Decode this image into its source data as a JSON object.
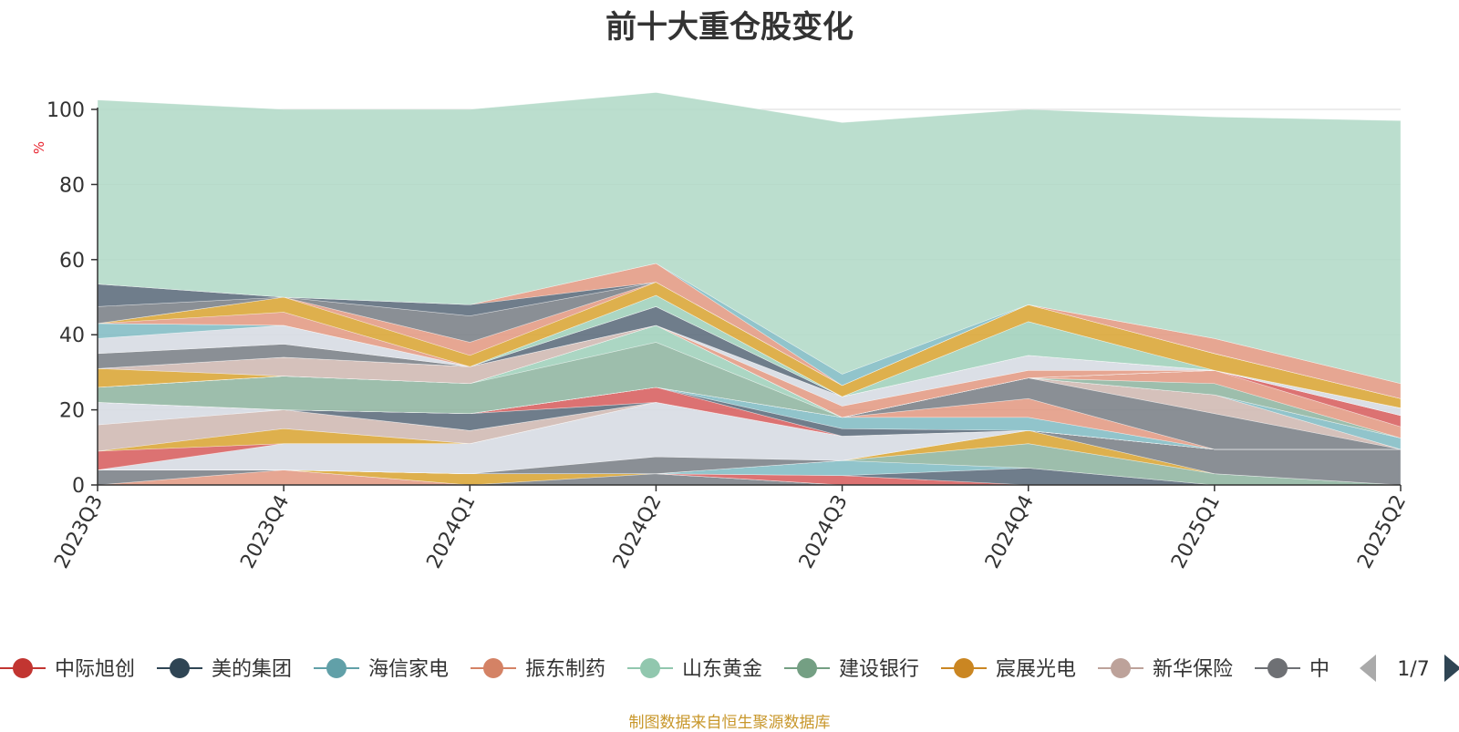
{
  "chart_data": {
    "type": "area",
    "title": "前十大重仓股变化",
    "ylabel": "%",
    "ylim": [
      0,
      100
    ],
    "yticks": [
      0,
      20,
      40,
      60,
      80,
      100
    ],
    "grid": true,
    "legend_position": "bottom",
    "categories": [
      "2023Q3",
      "2023Q4",
      "2024Q1",
      "2024Q2",
      "2024Q3",
      "2024Q4",
      "2025Q1",
      "2025Q2"
    ],
    "stacked_layers": [
      {
        "color": "#e39a83",
        "values": [
          0,
          4,
          0,
          0,
          0,
          0,
          0,
          0
        ]
      },
      {
        "color": "#7a7f86",
        "values": [
          4,
          0,
          0,
          3,
          0,
          0,
          0,
          0
        ]
      },
      {
        "color": "#d9a534",
        "values": [
          0,
          0,
          3,
          0,
          0,
          0,
          0,
          0
        ]
      },
      {
        "color": "#9fd0bb",
        "values": [
          0,
          0,
          0,
          0,
          0,
          0,
          0,
          0
        ]
      },
      {
        "color": "#d75f5f",
        "values": [
          0,
          0,
          0,
          0,
          2.5,
          0,
          0,
          0
        ]
      },
      {
        "color": "#5b6b7b",
        "values": [
          0,
          0,
          0,
          0,
          0,
          4.5,
          0,
          0
        ]
      },
      {
        "color": "#82bcc4",
        "values": [
          0,
          0,
          0,
          0,
          4,
          0,
          0,
          0
        ]
      },
      {
        "color": "#8fb5a0",
        "values": [
          0,
          0,
          0,
          0,
          0,
          6.5,
          3,
          0
        ]
      },
      {
        "color": "#d9a534",
        "values": [
          0,
          0,
          0,
          0,
          0,
          3.5,
          0,
          0
        ]
      },
      {
        "color": "#7a7f86",
        "values": [
          0,
          0,
          0,
          4.5,
          0,
          0,
          6.5,
          9.5
        ]
      },
      {
        "color": "#d6dbe2",
        "values": [
          0,
          7,
          8,
          14.5,
          6.5,
          0,
          0,
          0
        ]
      },
      {
        "color": "#d75f5f",
        "values": [
          5,
          0,
          0,
          0,
          0,
          0,
          0,
          0
        ]
      },
      {
        "color": "#d9a534",
        "values": [
          0,
          4,
          0,
          0,
          0,
          0,
          0,
          0
        ]
      },
      {
        "color": "#cfb8b2",
        "values": [
          7,
          5,
          3.5,
          0,
          0,
          0,
          0,
          0
        ]
      },
      {
        "color": "#d6dbe2",
        "values": [
          6,
          0,
          0,
          0,
          0,
          0,
          0,
          0
        ]
      },
      {
        "color": "#5b6b7b",
        "values": [
          0,
          0,
          4.5,
          0,
          0,
          0,
          0,
          0
        ]
      },
      {
        "color": "#d75f5f",
        "values": [
          0,
          0,
          0,
          4,
          0,
          0,
          0,
          0
        ]
      },
      {
        "color": "#5b6b7b",
        "values": [
          0,
          0,
          0,
          0,
          2,
          0,
          0,
          0
        ]
      },
      {
        "color": "#82bcc4",
        "values": [
          0,
          0,
          0,
          0,
          3,
          3.5,
          0,
          0
        ]
      },
      {
        "color": "#e39a83",
        "values": [
          0,
          0,
          0,
          0,
          0,
          5,
          0,
          0
        ]
      },
      {
        "color": "#7a7f86",
        "values": [
          0,
          0,
          0,
          0,
          0,
          5.5,
          9.5,
          0
        ]
      },
      {
        "color": "#cfb8b2",
        "values": [
          0,
          0,
          0,
          0,
          0,
          0,
          5,
          0
        ]
      },
      {
        "color": "#82bcc4",
        "values": [
          0,
          0,
          0,
          0,
          0,
          0,
          0,
          3
        ]
      },
      {
        "color": "#8fb5a0",
        "values": [
          4,
          9,
          8,
          12,
          0,
          0,
          0,
          0
        ]
      },
      {
        "color": "#9fd0bb",
        "values": [
          0,
          0,
          0,
          4.5,
          0,
          0,
          0,
          0
        ]
      },
      {
        "color": "#8fb5a0",
        "values": [
          0,
          0,
          0,
          0,
          0,
          0,
          3,
          0
        ]
      },
      {
        "color": "#e39a83",
        "values": [
          0,
          0,
          0,
          0,
          0,
          0,
          3.5,
          3
        ]
      },
      {
        "color": "#d75f5f",
        "values": [
          0,
          0,
          0,
          0,
          0,
          0,
          0,
          3
        ]
      },
      {
        "color": "#d9a534",
        "values": [
          5,
          0,
          0,
          0,
          0,
          0,
          0,
          0
        ]
      },
      {
        "color": "#cfb8b2",
        "values": [
          0,
          5,
          4.5,
          0,
          0,
          0,
          0,
          0
        ]
      },
      {
        "color": "#e39a83",
        "values": [
          0,
          0,
          0,
          0,
          3,
          2,
          0,
          0
        ]
      },
      {
        "color": "#d6dbe2",
        "values": [
          0,
          0,
          0,
          0,
          2.5,
          4,
          0,
          2
        ]
      },
      {
        "color": "#7a7f86",
        "values": [
          4,
          3.5,
          0,
          0,
          0,
          0,
          0,
          0
        ]
      },
      {
        "color": "#5b6b7b",
        "values": [
          0,
          0,
          0,
          5,
          0,
          0,
          0,
          0
        ]
      },
      {
        "color": "#d6dbe2",
        "values": [
          4,
          5,
          0,
          0,
          0,
          0,
          0,
          0
        ]
      },
      {
        "color": "#82bcc4",
        "values": [
          4,
          0,
          0,
          0,
          0,
          0,
          0,
          0
        ]
      },
      {
        "color": "#9fd0bb",
        "values": [
          0,
          0,
          0,
          3,
          0,
          9,
          0,
          0
        ]
      },
      {
        "color": "#e39a83",
        "values": [
          0,
          3.5,
          0,
          0,
          0,
          0,
          0,
          0
        ]
      },
      {
        "color": "#d9a534",
        "values": [
          0,
          4,
          3,
          3.5,
          3,
          4.5,
          4.5,
          2.5
        ]
      },
      {
        "color": "#e39a83",
        "values": [
          0,
          0,
          3.5,
          0,
          0,
          0,
          0,
          0
        ]
      },
      {
        "color": "#7a7f86",
        "values": [
          4.5,
          0,
          7,
          0,
          0,
          0,
          0,
          0
        ]
      },
      {
        "color": "#5b6b7b",
        "values": [
          6,
          0,
          3,
          0,
          0,
          0,
          0,
          0
        ]
      },
      {
        "color": "#e39a83",
        "values": [
          0,
          0,
          0,
          5,
          0,
          0,
          4,
          4
        ]
      },
      {
        "color": "#82bcc4",
        "values": [
          0,
          0,
          0,
          0,
          3,
          0,
          0,
          0
        ]
      },
      {
        "color": "#b2d9c7",
        "values": [
          49,
          50,
          52,
          45.5,
          67,
          52,
          59,
          70
        ]
      }
    ],
    "series": [
      {
        "name": "中际旭创",
        "color": "#c23531"
      },
      {
        "name": "美的集团",
        "color": "#2f4554"
      },
      {
        "name": "海信家电",
        "color": "#61a0a8"
      },
      {
        "name": "振东制药",
        "color": "#d48265"
      },
      {
        "name": "山东黄金",
        "color": "#91c7ae"
      },
      {
        "name": "建设银行",
        "color": "#749f83"
      },
      {
        "name": "宸展光电",
        "color": "#ca8622"
      },
      {
        "name": "新华保险",
        "color": "#bda29a"
      },
      {
        "name": "中",
        "color": "#6e7074"
      }
    ]
  },
  "legend": {
    "page_indicator": "1/7",
    "prev_icon": "arrow-left-icon",
    "next_icon": "arrow-right-icon"
  },
  "source_note": "制图数据来自恒生聚源数据库"
}
